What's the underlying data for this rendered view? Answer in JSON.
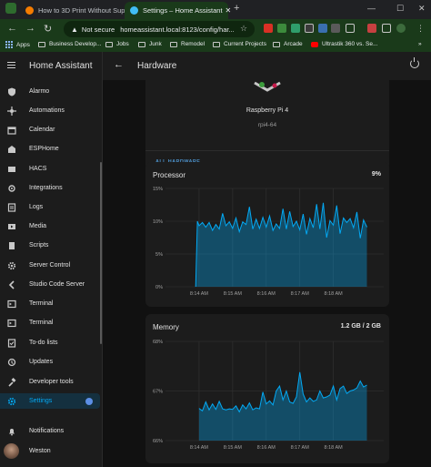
{
  "browser": {
    "tabs": [
      {
        "title": "How to 3D Print Without Supp",
        "active": false,
        "favicon_color": "#f57c00"
      },
      {
        "title": "Settings – Home Assistant",
        "active": true,
        "favicon_color": "#41bdf5"
      }
    ],
    "new_tab_label": "+",
    "omnibox": {
      "security_label": "Not secure",
      "url": "homeassistant.local:8123/config/har..."
    },
    "bookmarks": [
      {
        "label": "Apps",
        "icon": "apps-grid-icon"
      },
      {
        "label": "Business Develop...",
        "icon": "folder-icon"
      },
      {
        "label": "Jobs",
        "icon": "folder-icon"
      },
      {
        "label": "Junk",
        "icon": "folder-icon"
      },
      {
        "label": "Remodel",
        "icon": "folder-icon"
      },
      {
        "label": "Current Projects",
        "icon": "folder-icon"
      },
      {
        "label": "Arcade",
        "icon": "folder-icon"
      },
      {
        "label": "Ultrastik 360 vs. Se...",
        "icon": "youtube-icon"
      }
    ]
  },
  "sidebar": {
    "title": "Home Assistant",
    "items": [
      {
        "label": "Alarmo",
        "icon": "shield-icon"
      },
      {
        "label": "Automations",
        "icon": "robot-icon"
      },
      {
        "label": "Calendar",
        "icon": "calendar-icon"
      },
      {
        "label": "ESPHome",
        "icon": "esphome-icon"
      },
      {
        "label": "HACS",
        "icon": "hacs-icon"
      },
      {
        "label": "Integrations",
        "icon": "puzzle-icon"
      },
      {
        "label": "Logs",
        "icon": "logs-icon"
      },
      {
        "label": "Media",
        "icon": "media-icon"
      },
      {
        "label": "Scripts",
        "icon": "script-icon"
      },
      {
        "label": "Server Control",
        "icon": "gear-cog-icon"
      },
      {
        "label": "Studio Code Server",
        "icon": "code-icon"
      },
      {
        "label": "Terminal",
        "icon": "terminal-icon"
      },
      {
        "label": "Terminal",
        "icon": "terminal-icon"
      },
      {
        "label": "To-do lists",
        "icon": "checklist-icon"
      },
      {
        "label": "Updates",
        "icon": "updates-icon"
      },
      {
        "label": "Developer tools",
        "icon": "hammer-icon"
      },
      {
        "label": "Settings",
        "icon": "settings-icon",
        "selected": true,
        "badge": "1"
      }
    ],
    "notifications_label": "Notifications",
    "user_label": "Weston"
  },
  "page": {
    "title": "Hardware",
    "board": {
      "name": "Raspberry Pi 4",
      "model": "rpi4-64",
      "link_label": "ALL HARDWARE"
    },
    "accent": "#03a9f4"
  },
  "chart_data": [
    {
      "type": "area",
      "title": "Processor",
      "current_value": "9%",
      "yticks": [
        "15%",
        "10%",
        "5%",
        "0%"
      ],
      "ylim": [
        0,
        15
      ],
      "xticks": [
        "8:14 AM",
        "8:15 AM",
        "8:16 AM",
        "8:17 AM",
        "8:18 AM"
      ],
      "series": [
        {
          "x": [
            0.9,
            0.95,
            1.0,
            1.1,
            1.2,
            1.3,
            1.4,
            1.5,
            1.6,
            1.7,
            1.8,
            1.9,
            2.0,
            2.1,
            2.2,
            2.3,
            2.4,
            2.5,
            2.6,
            2.7,
            2.8,
            2.9,
            3.0,
            3.1,
            3.2,
            3.3,
            3.4,
            3.5,
            3.6,
            3.7,
            3.8,
            3.9,
            4.0,
            4.1,
            4.2,
            4.3,
            4.4,
            4.5,
            4.6,
            4.7,
            4.8,
            4.9,
            5.0,
            5.1,
            5.2,
            5.3,
            5.4,
            5.5,
            5.6,
            5.7,
            5.8,
            5.9,
            6.0
          ],
          "values": [
            0,
            10,
            9.3,
            9.8,
            9.1,
            9.8,
            8.6,
            9.5,
            8.8,
            11.2,
            9.3,
            9.9,
            8.9,
            10.5,
            8.4,
            9.9,
            9.5,
            12.2,
            8.8,
            10.3,
            8.9,
            10.6,
            9.1,
            10.8,
            8.6,
            9.6,
            8.9,
            11.9,
            8.8,
            11.5,
            9.2,
            10.0,
            8.7,
            11.1,
            8.0,
            10.4,
            9.0,
            12.6,
            8.8,
            12.8,
            7.5,
            10.1,
            9.4,
            12.4,
            8.1,
            10.5,
            9.8,
            10.4,
            9.0,
            11.4,
            7.4,
            10.2,
            9.1
          ]
        }
      ]
    },
    {
      "type": "area",
      "title": "Memory",
      "current_value": "1.2 GB / 2 GB",
      "yticks": [
        "68%",
        "67%",
        "66%"
      ],
      "ylim": [
        66,
        68
      ],
      "xticks": [
        "8:14 AM",
        "8:15 AM",
        "8:16 AM",
        "8:17 AM",
        "8:18 AM"
      ],
      "series": [
        {
          "x": [
            1.0,
            1.1,
            1.2,
            1.3,
            1.4,
            1.5,
            1.6,
            1.7,
            1.8,
            1.9,
            2.0,
            2.1,
            2.2,
            2.3,
            2.4,
            2.5,
            2.6,
            2.7,
            2.8,
            2.9,
            3.0,
            3.1,
            3.2,
            3.3,
            3.4,
            3.5,
            3.6,
            3.7,
            3.8,
            3.9,
            4.0,
            4.1,
            4.2,
            4.3,
            4.4,
            4.5,
            4.6,
            4.7,
            4.8,
            4.9,
            5.0,
            5.1,
            5.2,
            5.3,
            5.4,
            5.5,
            5.6,
            5.7,
            5.8,
            5.9,
            6.0
          ],
          "values": [
            66.65,
            66.6,
            66.78,
            66.62,
            66.74,
            66.63,
            66.79,
            66.64,
            66.62,
            66.64,
            66.63,
            66.7,
            66.58,
            66.72,
            66.64,
            66.76,
            66.62,
            66.66,
            66.64,
            66.98,
            66.74,
            66.8,
            66.72,
            67.0,
            67.1,
            66.82,
            67.0,
            66.78,
            66.75,
            66.88,
            67.38,
            66.94,
            66.78,
            66.86,
            66.79,
            66.82,
            67.0,
            66.86,
            66.88,
            66.92,
            67.1,
            66.82,
            67.05,
            67.1,
            66.95,
            67.0,
            67.02,
            67.06,
            67.2,
            67.08,
            67.12
          ]
        }
      ]
    }
  ]
}
